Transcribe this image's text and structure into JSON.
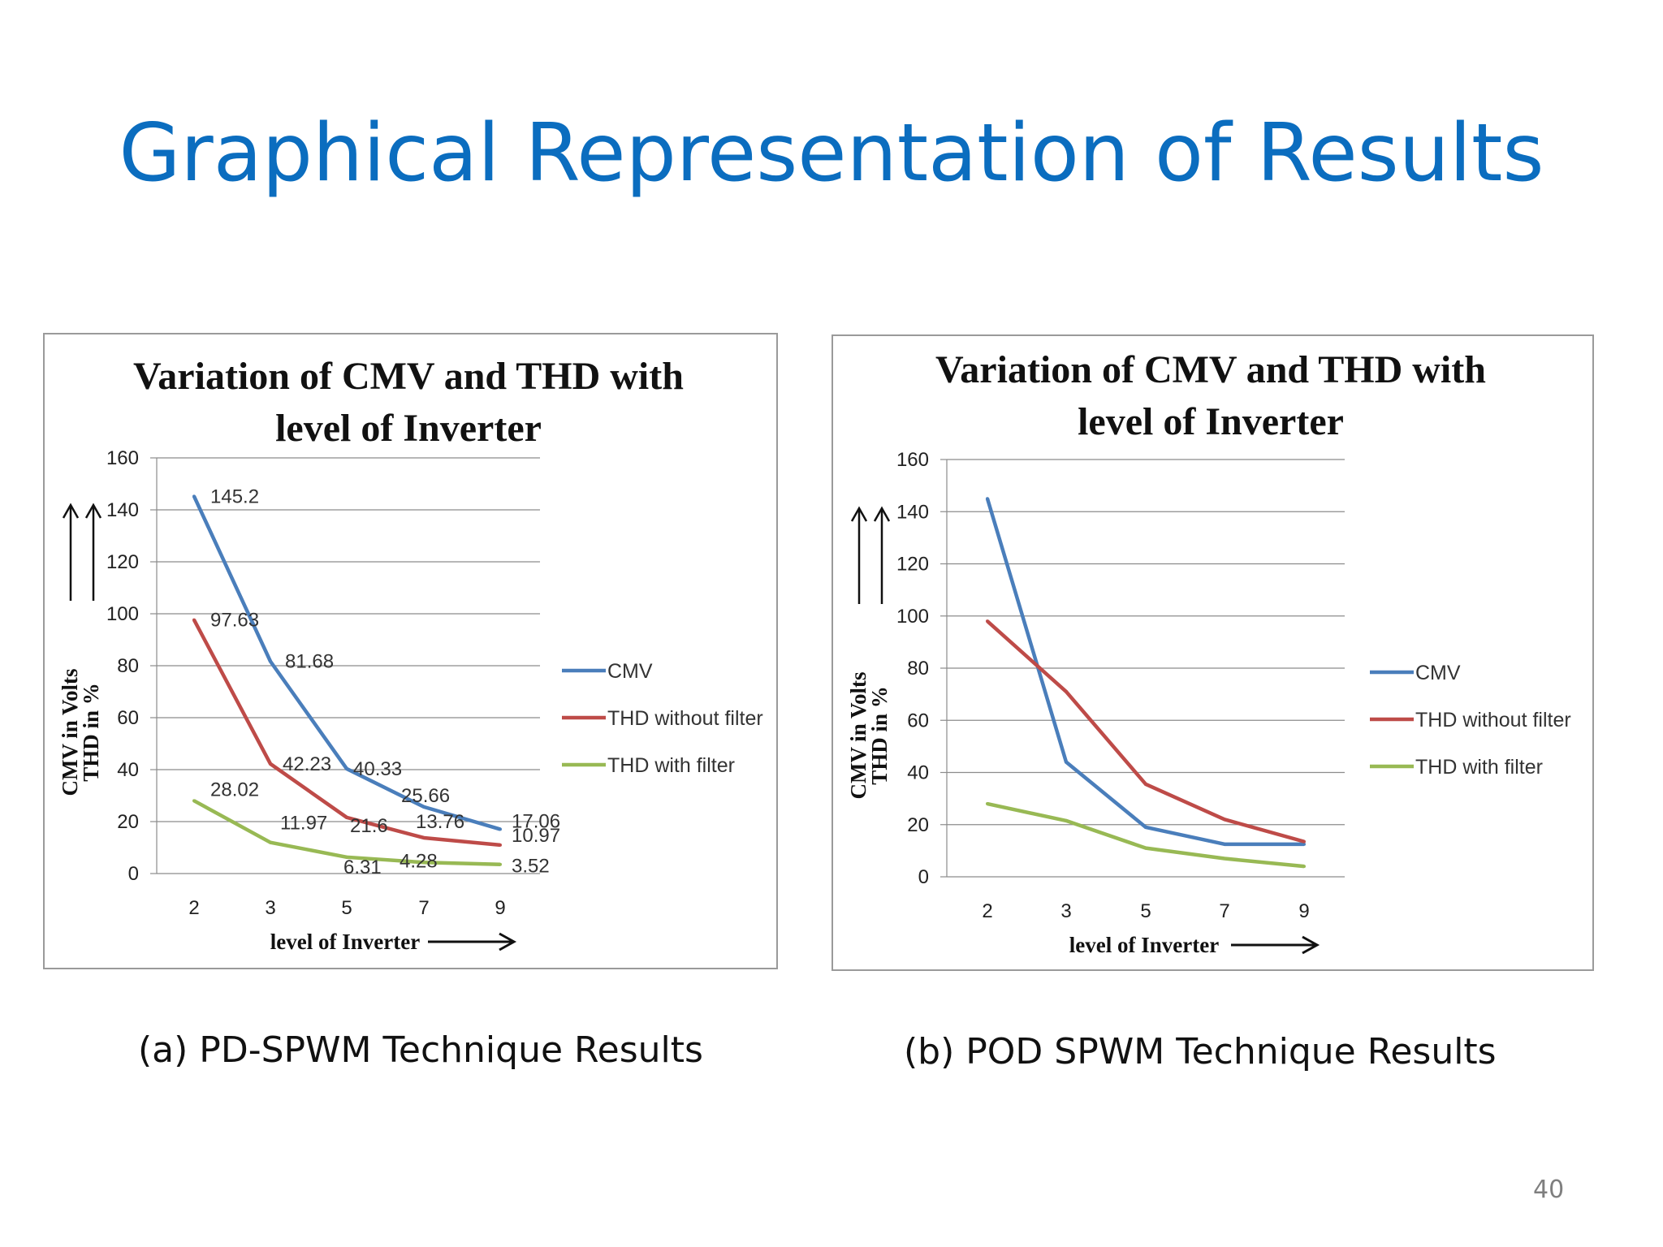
{
  "slide": {
    "title": "Graphical Representation of Results",
    "page_number": "40",
    "caption_a": "(a) PD-SPWM Technique Results",
    "caption_b": "(b) POD SPWM Technique Results"
  },
  "colors": {
    "title": "#0b6dbf",
    "cmv": "#4a7ebb",
    "thd_without_filter": "#be4b48",
    "thd_with_filter": "#98b954",
    "grid": "#8c8c8c"
  },
  "chart_data": [
    {
      "type": "line",
      "title_line1": "Variation of CMV and THD with",
      "title_line2": "level of Inverter",
      "xlabel": "level of Inverter",
      "ylabel_line1": "CMV in Volts",
      "ylabel_line2": "THD in %",
      "categories": [
        "2",
        "3",
        "5",
        "7",
        "9"
      ],
      "ylim": [
        0,
        160
      ],
      "yticks": [
        0,
        20,
        40,
        60,
        80,
        100,
        120,
        140,
        160
      ],
      "grid": true,
      "legend": "right",
      "series": [
        {
          "name": "CMV",
          "values": [
            145.2,
            81.68,
            40.33,
            25.66,
            17.06
          ],
          "labels": [
            "145.2",
            "81.68",
            "40.33",
            "25.66",
            "17.06"
          ]
        },
        {
          "name": "THD without filter",
          "values": [
            97.63,
            42.23,
            21.6,
            13.76,
            10.97
          ],
          "labels": [
            "97.63",
            "42.23",
            "21.6",
            "13.76",
            "10.97"
          ]
        },
        {
          "name": "THD with filter",
          "values": [
            28.02,
            11.97,
            6.31,
            4.28,
            3.52
          ],
          "labels": [
            "28.02",
            "11.97",
            "6.31",
            "4.28",
            "3.52"
          ]
        }
      ]
    },
    {
      "type": "line",
      "title_line1": "Variation of CMV and THD with",
      "title_line2": "level of Inverter",
      "xlabel": "level of Inverter",
      "ylabel_line1": "CMV in Volts",
      "ylabel_line2": "THD in %",
      "categories": [
        "2",
        "3",
        "5",
        "7",
        "9"
      ],
      "ylim": [
        0,
        160
      ],
      "yticks": [
        0,
        20,
        40,
        60,
        80,
        100,
        120,
        140,
        160
      ],
      "grid": true,
      "legend": "right",
      "series": [
        {
          "name": "CMV",
          "values": [
            145,
            44,
            19,
            12.5,
            12.5
          ]
        },
        {
          "name": "THD without filter",
          "values": [
            98,
            71,
            35.5,
            22,
            13.5
          ]
        },
        {
          "name": "THD with filter",
          "values": [
            28,
            21.5,
            11,
            7,
            4
          ]
        }
      ]
    }
  ]
}
